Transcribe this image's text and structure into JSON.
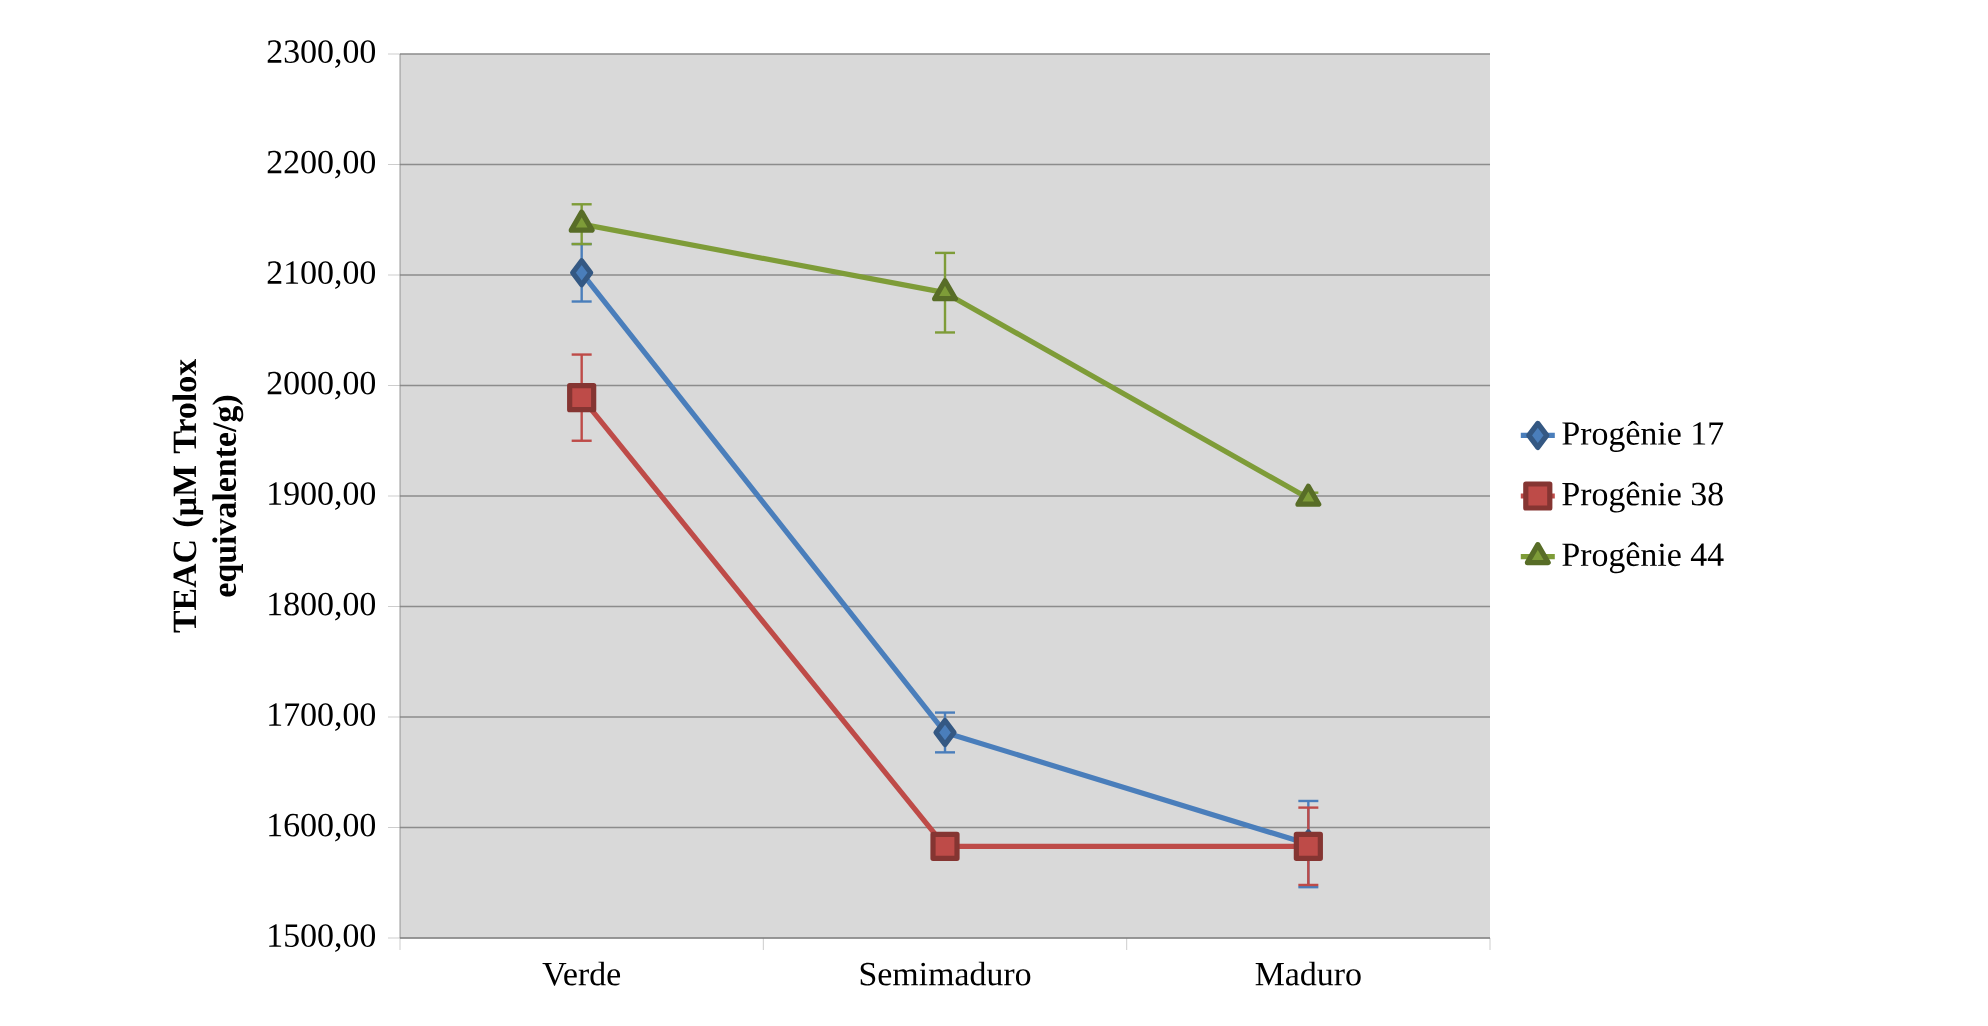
{
  "chart_data": {
    "type": "line",
    "ylabel": "TEAC (µM Trolox equivalente/g)",
    "categories": [
      "Verde",
      "Semimaduro",
      "Maduro"
    ],
    "series": [
      {
        "name": "Progênie 17",
        "color": "#4a7ebb",
        "marker": "diamond",
        "values": [
          2102,
          1686,
          1585
        ],
        "errors": [
          26,
          18,
          39
        ]
      },
      {
        "name": "Progênie 38",
        "color": "#be4b48",
        "marker": "square",
        "values": [
          1989,
          1583,
          1583
        ],
        "errors": [
          39,
          5,
          35
        ]
      },
      {
        "name": "Progênie 44",
        "color": "#7e9c38",
        "marker": "triangle",
        "values": [
          2146,
          2084,
          1898
        ],
        "errors": [
          18,
          36,
          5
        ]
      }
    ],
    "ylim": [
      1500,
      2300
    ],
    "yticks": [
      {
        "value": 1500,
        "label": "1500,00"
      },
      {
        "value": 1600,
        "label": "1600,00"
      },
      {
        "value": 1700,
        "label": "1700,00"
      },
      {
        "value": 1800,
        "label": "1800,00"
      },
      {
        "value": 1900,
        "label": "1900,00"
      },
      {
        "value": 2000,
        "label": "2000,00"
      },
      {
        "value": 2100,
        "label": "2100,00"
      },
      {
        "value": 2200,
        "label": "2200,00"
      },
      {
        "value": 2300,
        "label": "2300,00"
      }
    ],
    "grid": "y",
    "legend": "right",
    "line_style": "solid"
  }
}
